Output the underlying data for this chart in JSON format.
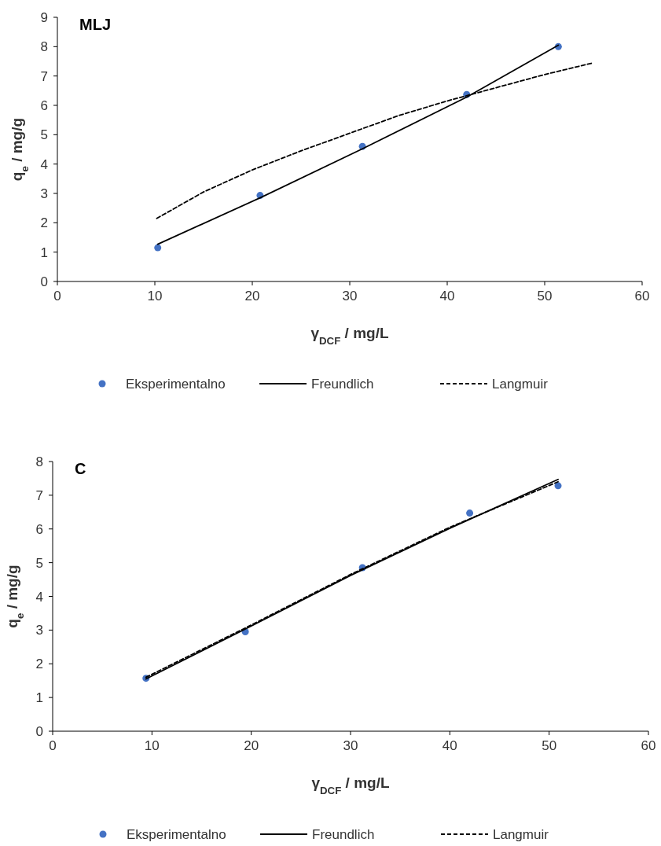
{
  "chart_data": [
    {
      "type": "scatter",
      "annotations": [
        "MLJ"
      ],
      "xlabel": "γ$_{DCF}$ / mg/L",
      "ylabel": "q$_{e}$ / mg/g",
      "xlim": [
        0,
        60
      ],
      "xticks": [
        0,
        10,
        20,
        30,
        40,
        50,
        60
      ],
      "ylim": [
        0,
        9
      ],
      "yticks": [
        0,
        1,
        2,
        3,
        4,
        5,
        6,
        7,
        8,
        9
      ],
      "legend": "bottom",
      "series": [
        {
          "name": "Eksperimentalno",
          "marker": "circle",
          "color": "#4472c4",
          "x": [
            10.3,
            20.8,
            31.3,
            42,
            51.4
          ],
          "values": [
            1.15,
            2.93,
            4.6,
            6.37,
            8.0
          ]
        },
        {
          "name": "Freundlich",
          "type": "line",
          "line_style": "solid",
          "color": "#000000",
          "x": [
            10.3,
            20.8,
            31.3,
            42,
            51.4
          ],
          "values": [
            1.27,
            2.85,
            4.52,
            6.28,
            8.05
          ]
        },
        {
          "name": "Langmuir",
          "type": "line",
          "line_style": "dashed",
          "color": "#000000",
          "x": [
            10.2,
            15,
            20,
            25,
            30,
            35,
            40,
            45,
            50,
            55
          ],
          "values": [
            2.15,
            3.05,
            3.8,
            4.45,
            5.05,
            5.65,
            6.15,
            6.6,
            7.05,
            7.45
          ]
        }
      ]
    },
    {
      "type": "scatter",
      "annotations": [
        "C"
      ],
      "xlabel": "γ$_{DCF}$ / mg/L",
      "ylabel": "q$_{e}$ / mg/g",
      "xlim": [
        0,
        60
      ],
      "xticks": [
        0,
        10,
        20,
        30,
        40,
        50,
        60
      ],
      "ylim": [
        0,
        8
      ],
      "yticks": [
        0,
        1,
        2,
        3,
        4,
        5,
        6,
        7,
        8
      ],
      "legend": "bottom",
      "series": [
        {
          "name": "Eksperimentalno",
          "marker": "circle",
          "color": "#4472c4",
          "x": [
            9.4,
            19.4,
            31.2,
            42,
            50.9
          ],
          "values": [
            1.57,
            2.95,
            4.85,
            6.47,
            7.28
          ]
        },
        {
          "name": "Freundlich",
          "type": "line",
          "line_style": "solid",
          "color": "#000000",
          "x": [
            9.4,
            20,
            30,
            40,
            50.9
          ],
          "values": [
            1.55,
            3.12,
            4.62,
            6.02,
            7.47
          ]
        },
        {
          "name": "Langmuir",
          "type": "line",
          "line_style": "dashed",
          "color": "#000000",
          "x": [
            9.4,
            20,
            30,
            40,
            50.9
          ],
          "values": [
            1.6,
            3.15,
            4.65,
            6.05,
            7.4
          ]
        }
      ]
    }
  ]
}
